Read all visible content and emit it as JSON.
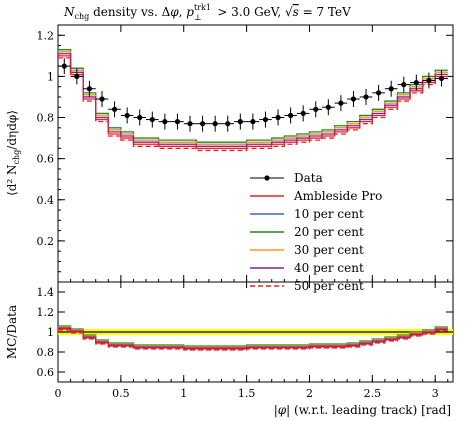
{
  "chart_data": [
    {
      "panel": "main",
      "type": "line",
      "title": "N_chg density vs. Δφ, p_⊥^trk1 > 3.0 GeV, √s = 7 TeV",
      "ylabel": "⟨d² N_chg/dηdφ⟩",
      "ylim": [
        0.0,
        1.25
      ],
      "yticks": [
        0.2,
        0.4,
        0.6,
        0.8,
        1,
        1.2
      ],
      "xlim": [
        0.0,
        3.1416
      ],
      "grid": false,
      "legend_position": "right-center",
      "legend": [
        "Data",
        "Ambleside Pro",
        "10 per cent",
        "20 per cent",
        "30 per cent",
        "40 per cent",
        "50 per cent"
      ],
      "x": [
        0.05,
        0.15,
        0.25,
        0.35,
        0.45,
        0.55,
        0.65,
        0.75,
        0.85,
        0.95,
        1.05,
        1.15,
        1.25,
        1.35,
        1.45,
        1.55,
        1.65,
        1.75,
        1.85,
        1.95,
        2.05,
        2.15,
        2.25,
        2.35,
        2.45,
        2.55,
        2.65,
        2.75,
        2.85,
        2.95,
        3.05
      ],
      "series": [
        {
          "name": "Data",
          "color": "#000000",
          "style": "points",
          "values": [
            1.05,
            1.0,
            0.94,
            0.89,
            0.84,
            0.81,
            0.8,
            0.79,
            0.78,
            0.78,
            0.77,
            0.77,
            0.77,
            0.77,
            0.78,
            0.78,
            0.79,
            0.8,
            0.81,
            0.82,
            0.84,
            0.85,
            0.87,
            0.89,
            0.9,
            0.92,
            0.94,
            0.96,
            0.97,
            0.98,
            0.99
          ]
        },
        {
          "name": "Ambleside Pro",
          "color": "#ee2222",
          "style": "solid",
          "values": [
            1.1,
            1.01,
            0.89,
            0.79,
            0.72,
            0.7,
            0.67,
            0.67,
            0.66,
            0.66,
            0.66,
            0.65,
            0.65,
            0.65,
            0.65,
            0.66,
            0.66,
            0.67,
            0.68,
            0.69,
            0.7,
            0.71,
            0.73,
            0.75,
            0.78,
            0.81,
            0.85,
            0.89,
            0.93,
            0.97,
            1.0
          ]
        },
        {
          "name": "10 per cent",
          "color": "#3366dd",
          "style": "solid",
          "values": [
            1.12,
            1.03,
            0.91,
            0.81,
            0.74,
            0.72,
            0.69,
            0.69,
            0.68,
            0.68,
            0.68,
            0.67,
            0.67,
            0.67,
            0.67,
            0.68,
            0.68,
            0.69,
            0.7,
            0.71,
            0.72,
            0.73,
            0.75,
            0.77,
            0.8,
            0.83,
            0.87,
            0.91,
            0.95,
            0.99,
            1.02
          ]
        },
        {
          "name": "20 per cent",
          "color": "#228822",
          "style": "solid",
          "values": [
            1.13,
            1.04,
            0.92,
            0.82,
            0.75,
            0.73,
            0.7,
            0.7,
            0.69,
            0.69,
            0.69,
            0.68,
            0.68,
            0.68,
            0.68,
            0.69,
            0.69,
            0.7,
            0.71,
            0.72,
            0.73,
            0.74,
            0.76,
            0.78,
            0.81,
            0.84,
            0.88,
            0.92,
            0.96,
            1.0,
            1.03
          ]
        },
        {
          "name": "30 per cent",
          "color": "#ff9922",
          "style": "solid",
          "values": [
            1.12,
            1.03,
            0.91,
            0.81,
            0.74,
            0.72,
            0.69,
            0.69,
            0.68,
            0.68,
            0.68,
            0.67,
            0.67,
            0.67,
            0.67,
            0.68,
            0.68,
            0.69,
            0.7,
            0.71,
            0.72,
            0.73,
            0.75,
            0.77,
            0.8,
            0.83,
            0.87,
            0.91,
            0.95,
            0.99,
            1.02
          ]
        },
        {
          "name": "40 per cent",
          "color": "#882299",
          "style": "solid",
          "values": [
            1.11,
            1.02,
            0.9,
            0.8,
            0.73,
            0.71,
            0.68,
            0.68,
            0.67,
            0.67,
            0.67,
            0.66,
            0.66,
            0.66,
            0.66,
            0.67,
            0.67,
            0.68,
            0.69,
            0.7,
            0.71,
            0.72,
            0.74,
            0.76,
            0.79,
            0.82,
            0.86,
            0.9,
            0.94,
            0.98,
            1.01
          ]
        },
        {
          "name": "50 per cent",
          "color": "#ee2222",
          "style": "dashed",
          "values": [
            1.09,
            1.0,
            0.88,
            0.78,
            0.71,
            0.69,
            0.66,
            0.66,
            0.65,
            0.65,
            0.65,
            0.64,
            0.64,
            0.64,
            0.64,
            0.65,
            0.65,
            0.66,
            0.67,
            0.68,
            0.69,
            0.7,
            0.72,
            0.74,
            0.77,
            0.8,
            0.84,
            0.88,
            0.92,
            0.96,
            0.99
          ]
        }
      ]
    },
    {
      "panel": "ratio",
      "type": "line",
      "ylabel": "MC/Data",
      "xlabel": "|φ| (w.r.t. leading track) [rad]",
      "ylim": [
        0.5,
        1.5
      ],
      "yticks": [
        0.6,
        0.8,
        1,
        1.2,
        1.4
      ],
      "xlim": [
        0.0,
        3.1416
      ],
      "xticks": [
        0,
        0.5,
        1,
        1.5,
        2,
        2.5,
        3
      ],
      "band": {
        "color": "#ffff00",
        "lo": 0.97,
        "hi": 1.03
      },
      "x": [
        0.05,
        0.15,
        0.25,
        0.35,
        0.45,
        0.55,
        0.65,
        0.75,
        0.85,
        0.95,
        1.05,
        1.15,
        1.25,
        1.35,
        1.45,
        1.55,
        1.65,
        1.75,
        1.85,
        1.95,
        2.05,
        2.15,
        2.25,
        2.35,
        2.45,
        2.55,
        2.65,
        2.75,
        2.85,
        2.95,
        3.05
      ],
      "series": [
        {
          "name": "Ambleside Pro",
          "color": "#ee2222",
          "style": "solid",
          "values": [
            1.03,
            1.0,
            0.94,
            0.89,
            0.86,
            0.86,
            0.84,
            0.84,
            0.84,
            0.84,
            0.83,
            0.83,
            0.83,
            0.83,
            0.83,
            0.84,
            0.84,
            0.84,
            0.84,
            0.84,
            0.85,
            0.85,
            0.85,
            0.86,
            0.88,
            0.9,
            0.92,
            0.94,
            0.97,
            0.99,
            1.02
          ]
        },
        {
          "name": "10 per cent",
          "color": "#3366dd",
          "style": "solid",
          "values": [
            1.05,
            1.02,
            0.96,
            0.91,
            0.88,
            0.88,
            0.86,
            0.86,
            0.86,
            0.86,
            0.85,
            0.85,
            0.85,
            0.85,
            0.85,
            0.86,
            0.86,
            0.86,
            0.86,
            0.86,
            0.87,
            0.87,
            0.87,
            0.88,
            0.9,
            0.92,
            0.94,
            0.96,
            0.99,
            1.01,
            1.04
          ]
        },
        {
          "name": "20 per cent",
          "color": "#228822",
          "style": "solid",
          "values": [
            1.06,
            1.03,
            0.97,
            0.92,
            0.89,
            0.89,
            0.87,
            0.87,
            0.87,
            0.87,
            0.86,
            0.86,
            0.86,
            0.86,
            0.86,
            0.87,
            0.87,
            0.87,
            0.87,
            0.87,
            0.88,
            0.88,
            0.88,
            0.89,
            0.91,
            0.93,
            0.95,
            0.97,
            1.0,
            1.02,
            1.05
          ]
        },
        {
          "name": "30 per cent",
          "color": "#ff9922",
          "style": "solid",
          "values": [
            1.05,
            1.02,
            0.96,
            0.91,
            0.88,
            0.88,
            0.86,
            0.86,
            0.86,
            0.86,
            0.85,
            0.85,
            0.85,
            0.85,
            0.85,
            0.86,
            0.86,
            0.86,
            0.86,
            0.86,
            0.87,
            0.87,
            0.87,
            0.88,
            0.9,
            0.92,
            0.94,
            0.96,
            0.99,
            1.01,
            1.04
          ]
        },
        {
          "name": "40 per cent",
          "color": "#882299",
          "style": "solid",
          "values": [
            1.04,
            1.01,
            0.95,
            0.9,
            0.87,
            0.87,
            0.85,
            0.85,
            0.85,
            0.85,
            0.84,
            0.84,
            0.84,
            0.84,
            0.84,
            0.85,
            0.85,
            0.85,
            0.85,
            0.85,
            0.86,
            0.86,
            0.86,
            0.87,
            0.89,
            0.91,
            0.93,
            0.95,
            0.98,
            1.0,
            1.03
          ]
        },
        {
          "name": "50 per cent",
          "color": "#ee2222",
          "style": "dashed",
          "values": [
            1.02,
            0.99,
            0.93,
            0.88,
            0.85,
            0.85,
            0.83,
            0.83,
            0.83,
            0.83,
            0.82,
            0.82,
            0.82,
            0.82,
            0.82,
            0.83,
            0.83,
            0.83,
            0.83,
            0.83,
            0.84,
            0.84,
            0.84,
            0.85,
            0.87,
            0.89,
            0.91,
            0.93,
            0.96,
            0.98,
            1.01
          ]
        }
      ]
    }
  ]
}
